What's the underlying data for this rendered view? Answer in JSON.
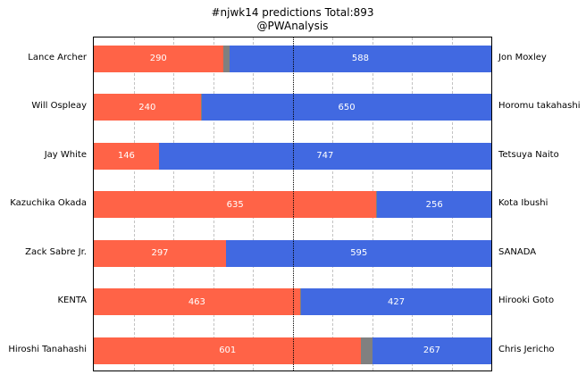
{
  "chart_data": {
    "type": "bar",
    "orientation": "horizontal-stacked",
    "title": "#njwk14 predictions Total:893",
    "subtitle": "@PWAnalysis",
    "total_votes": 893,
    "xlim": [
      0,
      893
    ],
    "grid": "on",
    "gridline_percents": [
      10,
      20,
      30,
      40,
      60,
      70,
      80,
      90
    ],
    "center_line_percent": 50,
    "colors": {
      "left_bar": "#FF6347",
      "draw_bar": "#808080",
      "right_bar": "#4169E1",
      "grid_line": "#c3c3c3",
      "center_line": "#000000",
      "value_text": "#ffffff",
      "label_text": "#000000"
    },
    "matchups": [
      {
        "left_name": "Lance Archer",
        "left_votes": 290,
        "right_votes": 588,
        "right_name": "Jon Moxley"
      },
      {
        "left_name": "Will Ospleay",
        "left_votes": 240,
        "right_votes": 650,
        "right_name": "Horomu takahashi"
      },
      {
        "left_name": "Jay White",
        "left_votes": 146,
        "right_votes": 747,
        "right_name": "Tetsuya Naito"
      },
      {
        "left_name": "Kazuchika Okada",
        "left_votes": 635,
        "right_votes": 256,
        "right_name": "Kota Ibushi"
      },
      {
        "left_name": "Zack Sabre Jr.",
        "left_votes": 297,
        "right_votes": 595,
        "right_name": "SANADA"
      },
      {
        "left_name": "KENTA",
        "left_votes": 463,
        "right_votes": 427,
        "right_name": "Hirooki Goto"
      },
      {
        "left_name": "Hiroshi Tanahashi",
        "left_votes": 601,
        "right_votes": 267,
        "right_name": "Chris Jericho"
      }
    ]
  }
}
